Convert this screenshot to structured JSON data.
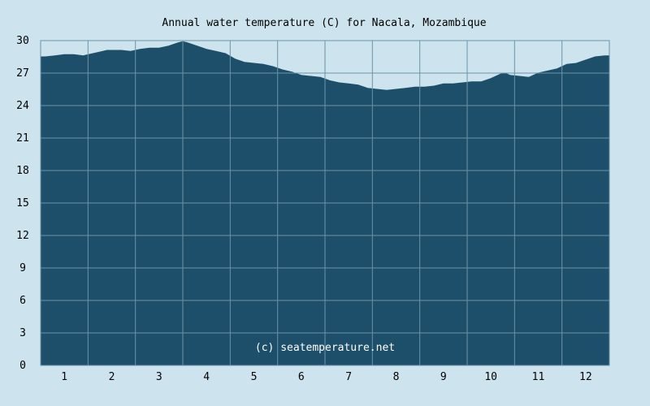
{
  "chart_data": {
    "type": "area",
    "title": "Annual water temperature (C) for Nacala, Mozambique",
    "xlabel": "",
    "ylabel": "",
    "x_tick_labels": [
      "1",
      "2",
      "3",
      "4",
      "5",
      "6",
      "7",
      "8",
      "9",
      "10",
      "11",
      "12"
    ],
    "y_tick_labels": [
      "0",
      "3",
      "6",
      "9",
      "12",
      "15",
      "18",
      "21",
      "24",
      "27",
      "30"
    ],
    "ylim": [
      0,
      30
    ],
    "xlim": [
      0.5,
      12.5
    ],
    "grid": true,
    "annotation": "(c) seatemperature.net",
    "colors": {
      "fill": "#1e4f6a",
      "grid": "#6c93a8",
      "background": "#cde3ee"
    },
    "series": [
      {
        "x": [
          0.5,
          0.6,
          0.8,
          1.0,
          1.2,
          1.4,
          1.5,
          1.7,
          1.9,
          2.0,
          2.2,
          2.4,
          2.6,
          2.8,
          3.0,
          3.2,
          3.4,
          3.5,
          3.6,
          3.8,
          4.0,
          4.2,
          4.4,
          4.6,
          4.8,
          5.0,
          5.2,
          5.4,
          5.6,
          5.8,
          6.0,
          6.2,
          6.4,
          6.6,
          6.8,
          7.0,
          7.2,
          7.4,
          7.6,
          7.8,
          8.0,
          8.2,
          8.4,
          8.6,
          8.8,
          9.0,
          9.2,
          9.4,
          9.6,
          9.8,
          10.0,
          10.2,
          10.3,
          10.4,
          10.6,
          10.8,
          11.0,
          11.2,
          11.4,
          11.6,
          11.8,
          12.0,
          12.2,
          12.4,
          12.5
        ],
        "values": [
          28.5,
          28.5,
          28.6,
          28.7,
          28.7,
          28.6,
          28.7,
          28.9,
          29.1,
          29.1,
          29.1,
          29.0,
          29.2,
          29.3,
          29.3,
          29.5,
          29.8,
          29.9,
          29.8,
          29.5,
          29.2,
          29.0,
          28.8,
          28.3,
          28.0,
          27.9,
          27.8,
          27.6,
          27.3,
          27.1,
          26.8,
          26.7,
          26.6,
          26.3,
          26.1,
          26.0,
          25.9,
          25.6,
          25.5,
          25.4,
          25.5,
          25.6,
          25.7,
          25.7,
          25.8,
          26.0,
          26.0,
          26.1,
          26.2,
          26.2,
          26.5,
          26.9,
          27.0,
          26.8,
          26.7,
          26.6,
          27.0,
          27.2,
          27.4,
          27.8,
          27.9,
          28.2,
          28.5,
          28.6,
          28.6
        ]
      }
    ]
  }
}
